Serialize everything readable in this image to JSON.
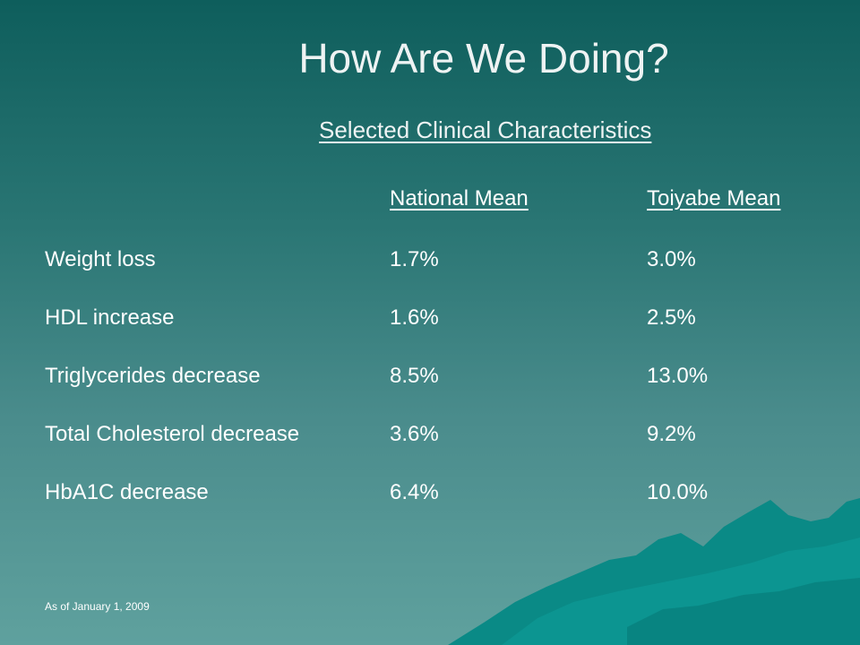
{
  "slide": {
    "title": "How Are We Doing?",
    "subtitle": "Selected Clinical Characteristics",
    "headers": {
      "national": "National Mean",
      "toiyabe": "Toiyabe Mean"
    },
    "rows": [
      {
        "label": "Weight loss",
        "national": "1.7%",
        "toiyabe": "3.0%"
      },
      {
        "label": "HDL increase",
        "national": "1.6%",
        "toiyabe": "2.5%"
      },
      {
        "label": "Triglycerides decrease",
        "national": "8.5%",
        "toiyabe": "13.0%"
      },
      {
        "label": "Total Cholesterol decrease",
        "national": "3.6%",
        "toiyabe": "9.2%"
      },
      {
        "label": "HbA1C decrease",
        "national": "6.4%",
        "toiyabe": "10.0%"
      }
    ],
    "footnote": "As of January 1, 2009"
  },
  "colors": {
    "background_top": "#0e5e5c",
    "background_bottom": "#5fa19e",
    "mountain": "#0a8a86",
    "text": "#ffffff"
  }
}
